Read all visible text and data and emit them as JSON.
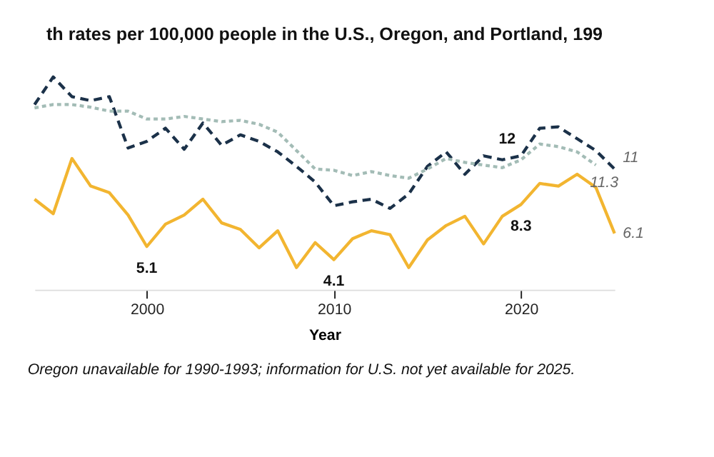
{
  "chart_data": {
    "type": "line",
    "title": "th rates per 100,000 people in the U.S., Oregon, and Portland, 199",
    "xlabel": "Year",
    "annotations": [
      "Oregon unavailable for 1990-1993; information for U.S. not yet available for 2025."
    ],
    "x": [
      1994,
      1995,
      1996,
      1997,
      1998,
      1999,
      2000,
      2001,
      2002,
      2003,
      2004,
      2005,
      2006,
      2007,
      2008,
      2009,
      2010,
      2011,
      2012,
      2013,
      2014,
      2015,
      2016,
      2017,
      2018,
      2019,
      2020,
      2021,
      2022,
      2023,
      2024,
      2025
    ],
    "xlim": [
      1994,
      2025
    ],
    "xticks": [
      2000,
      2010,
      2020
    ],
    "tick_labels": "x",
    "grid": false,
    "series": [
      {
        "color": "#1b3149",
        "line_style": "dashed",
        "values": [
          15.9,
          18.0,
          16.5,
          16.2,
          16.5,
          12.6,
          13.1,
          14.1,
          12.5,
          14.5,
          12.8,
          13.6,
          13.1,
          12.3,
          11.2,
          10.0,
          8.2,
          8.5,
          8.7,
          8.0,
          9.1,
          11.2,
          12.3,
          10.6,
          12.0,
          11.7,
          12,
          14.1,
          14.2,
          13.3,
          12.4,
          11.0
        ],
        "value_labels": [
          null,
          null,
          null,
          null,
          null,
          null,
          null,
          null,
          null,
          null,
          null,
          null,
          null,
          null,
          null,
          null,
          null,
          null,
          null,
          null,
          null,
          null,
          null,
          null,
          null,
          null,
          "12",
          null,
          null,
          null,
          null,
          "11"
        ]
      },
      {
        "color": "#a3bcb6",
        "line_style": "dotted",
        "values": [
          15.65,
          15.9,
          15.9,
          15.7,
          15.4,
          15.4,
          14.8,
          14.8,
          15.0,
          14.8,
          14.6,
          14.7,
          14.4,
          13.8,
          12.4,
          11.0,
          10.9,
          10.5,
          10.8,
          10.5,
          10.3,
          11.0,
          11.8,
          11.5,
          11.3,
          11.1,
          11.7,
          12.9,
          12.7,
          12.3,
          11.3,
          null
        ],
        "value_labels": [
          null,
          null,
          null,
          null,
          null,
          null,
          null,
          null,
          null,
          null,
          null,
          null,
          null,
          null,
          null,
          null,
          null,
          null,
          null,
          null,
          null,
          null,
          null,
          null,
          null,
          null,
          null,
          null,
          null,
          null,
          "11.3",
          null
        ]
      },
      {
        "color": "#f2b530",
        "line_style": "solid",
        "values": [
          8.7,
          7.6,
          11.8,
          9.7,
          9.2,
          7.5,
          5.1,
          6.8,
          7.5,
          8.7,
          6.9,
          6.4,
          5.0,
          6.3,
          3.5,
          5.4,
          4.1,
          5.7,
          6.3,
          6.0,
          3.5,
          5.6,
          6.7,
          7.4,
          5.3,
          7.4,
          8.3,
          9.9,
          9.7,
          10.6,
          9.6,
          6.1
        ],
        "value_labels": [
          null,
          null,
          null,
          null,
          null,
          null,
          "5.1",
          null,
          null,
          null,
          null,
          null,
          null,
          null,
          null,
          null,
          "4.1",
          null,
          null,
          null,
          null,
          null,
          null,
          null,
          null,
          null,
          "8.3",
          null,
          null,
          null,
          null,
          "6.1"
        ]
      }
    ]
  }
}
